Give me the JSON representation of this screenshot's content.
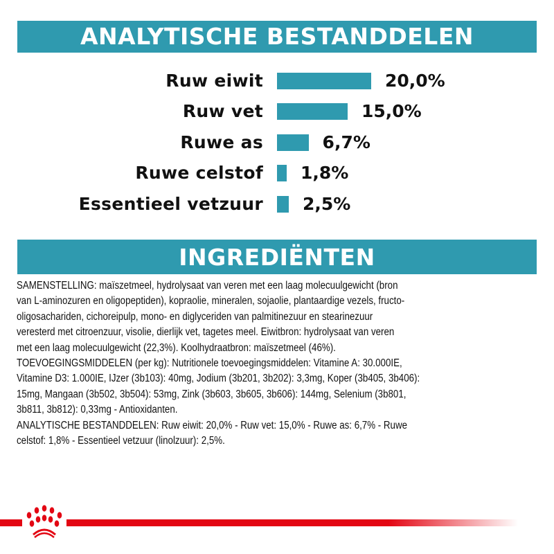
{
  "headers": {
    "analysis": "ANALYTISCHE BESTANDDELEN",
    "ingredients": "INGREDIËNTEN"
  },
  "colors": {
    "accent": "#2f9aaf",
    "brand_red": "#e30613"
  },
  "chart_data": {
    "type": "bar",
    "orientation": "horizontal",
    "categories": [
      "Ruw eiwit",
      "Ruw vet",
      "Ruwe as",
      "Ruwe celstof",
      "Essentieel vetzuur"
    ],
    "values": [
      20.0,
      15.0,
      6.7,
      1.8,
      2.5
    ],
    "value_labels": [
      "20,0%",
      "15,0%",
      "6,7%",
      "1,8%",
      "2,5%"
    ],
    "unit": "%",
    "grid": false
  },
  "ingredients_lines": [
    "SAMENSTELLING: maïszetmeel, hydrolysaat van veren met een laag molecuulgewicht (bron",
    "van L-aminozuren en oligopeptiden), kopraolie, mineralen, sojaolie, plantaardige vezels, fructo-",
    "oligosachariden, cichoreipulp, mono- en diglyceriden van palmitinezuur en stearinezuur",
    "veresterd met citroenzuur, visolie, dierlijk vet, tagetes meel. Eiwitbron: hydrolysaat van veren",
    "met een laag molecuulgewicht (22,3%). Koolhydraatbron: maïszetmeel (46%).",
    "TOEVOEGINGSMIDDELEN (per kg): Nutritionele toevoegingsmiddelen: Vitamine A: 30.000IE,",
    "Vitamine D3: 1.000IE, IJzer (3b103): 40mg, Jodium (3b201, 3b202): 3,3mg, Koper (3b405, 3b406):",
    "15mg, Mangaan (3b502, 3b504): 53mg, Zink (3b603, 3b605, 3b606): 144mg, Selenium (3b801,",
    "3b811, 3b812): 0,33mg - Antioxidanten.",
    "ANALYTISCHE BESTANDDELEN: Ruw eiwit: 20,0% - Ruw vet: 15,0% - Ruwe as: 6,7% - Ruwe",
    "celstof: 1,8% - Essentieel vetzuur (linolzuur): 2,5%."
  ],
  "logo": {
    "icon": "royal-canin-crown-logo"
  }
}
